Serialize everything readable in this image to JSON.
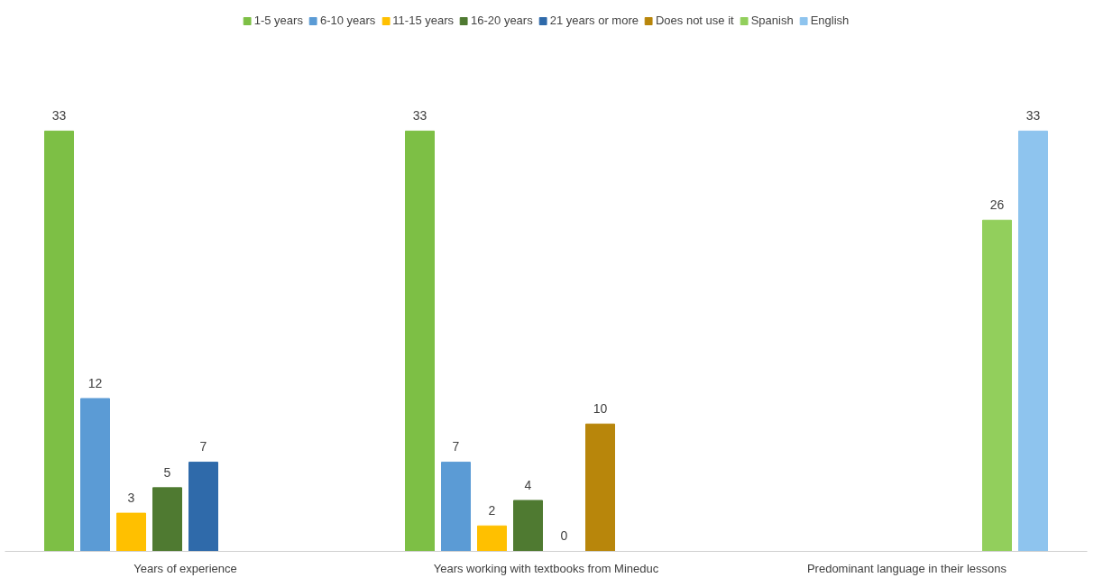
{
  "chart_data": {
    "type": "bar",
    "categories": [
      "Years of experience",
      "Years working with textbooks from Mineduc",
      "Predominant language in their lessons"
    ],
    "series": [
      {
        "name": "1-5 years",
        "color": "#7dbf45",
        "values": [
          33,
          33,
          null
        ]
      },
      {
        "name": "6-10 years",
        "color": "#5b9bd5",
        "values": [
          12,
          7,
          null
        ]
      },
      {
        "name": "11-15 years",
        "color": "#ffc000",
        "values": [
          3,
          2,
          null
        ]
      },
      {
        "name": "16-20 years",
        "color": "#4f7a31",
        "values": [
          5,
          4,
          null
        ]
      },
      {
        "name": "21 years or more",
        "color": "#2f6aaa",
        "values": [
          7,
          0,
          null
        ]
      },
      {
        "name": "Does not use it",
        "color": "#b8860b",
        "values": [
          null,
          10,
          null
        ]
      },
      {
        "name": "Spanish",
        "color": "#92cf5c",
        "values": [
          null,
          null,
          26
        ]
      },
      {
        "name": "English",
        "color": "#8ec4ee",
        "values": [
          null,
          null,
          33
        ]
      }
    ],
    "data_labels": true,
    "legend": "top",
    "grid": false,
    "tick_labels": "x"
  }
}
